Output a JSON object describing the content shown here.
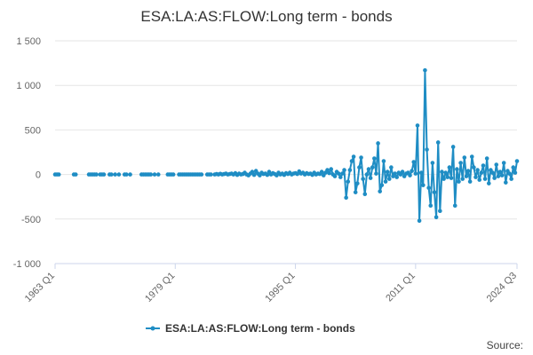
{
  "chart_data": {
    "type": "line",
    "title": "ESA:LA:AS:FLOW:Long term - bonds",
    "xlabel": "",
    "ylabel": "",
    "x_range": [
      "1963 Q1",
      "2024 Q3"
    ],
    "x_ticks": [
      "1963 Q1",
      "1979 Q1",
      "1995 Q1",
      "2011 Q1",
      "2024 Q3"
    ],
    "y_ticks": [
      "-1 000",
      "-500",
      "0",
      "500",
      "1 000",
      "1 500"
    ],
    "ylim": [
      -1000,
      1500
    ],
    "grid": true,
    "legend_position": "bottom",
    "series": [
      {
        "name": "ESA:LA:AS:FLOW:Long term - bonds",
        "color": "#1f8dc4",
        "points": [
          [
            "1963 Q1",
            0
          ],
          [
            "1963 Q2",
            0
          ],
          [
            "1963 Q3",
            0
          ],
          [
            "1965 Q3",
            0
          ],
          [
            "1965 Q4",
            0
          ],
          [
            "1967 Q3",
            0
          ],
          [
            "1967 Q4",
            0
          ],
          [
            "1968 Q1",
            0
          ],
          [
            "1968 Q2",
            0
          ],
          [
            "1968 Q3",
            0
          ],
          [
            "1969 Q1",
            0
          ],
          [
            "1969 Q2",
            0
          ],
          [
            "1969 Q3",
            0
          ],
          [
            "1970 Q2",
            0
          ],
          [
            "1970 Q3",
            0
          ],
          [
            "1971 Q1",
            0
          ],
          [
            "1971 Q3",
            0
          ],
          [
            "1972 Q2",
            0
          ],
          [
            "1972 Q3",
            0
          ],
          [
            "1973 Q1",
            0
          ],
          [
            "1974 Q3",
            0
          ],
          [
            "1974 Q4",
            0
          ],
          [
            "1975 Q1",
            0
          ],
          [
            "1975 Q2",
            0
          ],
          [
            "1975 Q3",
            0
          ],
          [
            "1975 Q4",
            0
          ],
          [
            "1976 Q2",
            0
          ],
          [
            "1976 Q4",
            0
          ],
          [
            "1978 Q1",
            0
          ],
          [
            "1978 Q2",
            0
          ],
          [
            "1978 Q3",
            0
          ],
          [
            "1978 Q4",
            0
          ],
          [
            "1979 Q3",
            0
          ],
          [
            "1979 Q4",
            0
          ],
          [
            "1980 Q1",
            0
          ],
          [
            "1980 Q2",
            0
          ],
          [
            "1980 Q3",
            0
          ],
          [
            "1980 Q4",
            0
          ],
          [
            "1981 Q1",
            0
          ],
          [
            "1981 Q2",
            0
          ],
          [
            "1981 Q3",
            0
          ],
          [
            "1981 Q4",
            0
          ],
          [
            "1982 Q1",
            0
          ],
          [
            "1982 Q2",
            0
          ],
          [
            "1982 Q3",
            0
          ],
          [
            "1983 Q2",
            0
          ],
          [
            "1983 Q3",
            0
          ],
          [
            "1983 Q4",
            0
          ],
          [
            "1984 Q2",
            0
          ],
          [
            "1984 Q3",
            5
          ],
          [
            "1984 Q4",
            0
          ],
          [
            "1985 Q1",
            8
          ],
          [
            "1985 Q2",
            0
          ],
          [
            "1985 Q3",
            5
          ],
          [
            "1985 Q4",
            10
          ],
          [
            "1986 Q1",
            0
          ],
          [
            "1986 Q2",
            5
          ],
          [
            "1986 Q3",
            10
          ],
          [
            "1986 Q4",
            0
          ],
          [
            "1987 Q1",
            15
          ],
          [
            "1987 Q2",
            -5
          ],
          [
            "1987 Q3",
            10
          ],
          [
            "1987 Q4",
            0
          ],
          [
            "1988 Q1",
            5
          ],
          [
            "1988 Q2",
            20
          ],
          [
            "1988 Q3",
            0
          ],
          [
            "1988 Q4",
            -10
          ],
          [
            "1989 Q1",
            10
          ],
          [
            "1989 Q2",
            30
          ],
          [
            "1989 Q3",
            -5
          ],
          [
            "1989 Q4",
            40
          ],
          [
            "1990 Q1",
            10
          ],
          [
            "1990 Q2",
            -10
          ],
          [
            "1990 Q3",
            20
          ],
          [
            "1990 Q4",
            5
          ],
          [
            "1991 Q1",
            10
          ],
          [
            "1991 Q2",
            -5
          ],
          [
            "1991 Q3",
            30
          ],
          [
            "1991 Q4",
            0
          ],
          [
            "1992 Q1",
            15
          ],
          [
            "1992 Q2",
            5
          ],
          [
            "1992 Q3",
            -10
          ],
          [
            "1992 Q4",
            20
          ],
          [
            "1993 Q1",
            0
          ],
          [
            "1993 Q2",
            10
          ],
          [
            "1993 Q3",
            -5
          ],
          [
            "1993 Q4",
            15
          ],
          [
            "1994 Q1",
            5
          ],
          [
            "1994 Q2",
            20
          ],
          [
            "1994 Q3",
            0
          ],
          [
            "1994 Q4",
            10
          ],
          [
            "1995 Q1",
            15
          ],
          [
            "1995 Q2",
            5
          ],
          [
            "1995 Q3",
            35
          ],
          [
            "1995 Q4",
            10
          ],
          [
            "1996 Q1",
            20
          ],
          [
            "1996 Q2",
            0
          ],
          [
            "1996 Q3",
            15
          ],
          [
            "1996 Q4",
            5
          ],
          [
            "1997 Q1",
            10
          ],
          [
            "1997 Q2",
            -5
          ],
          [
            "1997 Q3",
            20
          ],
          [
            "1997 Q4",
            0
          ],
          [
            "1998 Q1",
            10
          ],
          [
            "1998 Q2",
            5
          ],
          [
            "1998 Q3",
            30
          ],
          [
            "1998 Q4",
            -10
          ],
          [
            "1999 Q1",
            20
          ],
          [
            "1999 Q2",
            50
          ],
          [
            "1999 Q3",
            15
          ],
          [
            "1999 Q4",
            60
          ],
          [
            "2000 Q1",
            0
          ],
          [
            "2000 Q2",
            -20
          ],
          [
            "2000 Q3",
            30
          ],
          [
            "2000 Q4",
            10
          ],
          [
            "2001 Q1",
            -30
          ],
          [
            "2001 Q2",
            10
          ],
          [
            "2001 Q3",
            50
          ],
          [
            "2001 Q4",
            -260
          ],
          [
            "2002 Q1",
            -80
          ],
          [
            "2002 Q2",
            50
          ],
          [
            "2002 Q3",
            150
          ],
          [
            "2002 Q4",
            200
          ],
          [
            "2003 Q1",
            -200
          ],
          [
            "2003 Q2",
            -100
          ],
          [
            "2003 Q3",
            80
          ],
          [
            "2003 Q4",
            190
          ],
          [
            "2004 Q1",
            -50
          ],
          [
            "2004 Q2",
            -220
          ],
          [
            "2004 Q3",
            0
          ],
          [
            "2004 Q4",
            60
          ],
          [
            "2005 Q1",
            -40
          ],
          [
            "2005 Q2",
            80
          ],
          [
            "2005 Q3",
            180
          ],
          [
            "2005 Q4",
            10
          ],
          [
            "2006 Q1",
            350
          ],
          [
            "2006 Q2",
            -190
          ],
          [
            "2006 Q3",
            -120
          ],
          [
            "2006 Q4",
            150
          ],
          [
            "2007 Q1",
            -80
          ],
          [
            "2007 Q2",
            30
          ],
          [
            "2007 Q3",
            -50
          ],
          [
            "2007 Q4",
            80
          ],
          [
            "2008 Q1",
            -20
          ],
          [
            "2008 Q2",
            10
          ],
          [
            "2008 Q3",
            -30
          ],
          [
            "2008 Q4",
            20
          ],
          [
            "2009 Q1",
            0
          ],
          [
            "2009 Q2",
            30
          ],
          [
            "2009 Q3",
            -20
          ],
          [
            "2009 Q4",
            10
          ],
          [
            "2010 Q1",
            20
          ],
          [
            "2010 Q2",
            -10
          ],
          [
            "2010 Q3",
            40
          ],
          [
            "2010 Q4",
            140
          ],
          [
            "2011 Q1",
            10
          ],
          [
            "2011 Q2",
            550
          ],
          [
            "2011 Q3",
            -520
          ],
          [
            "2011 Q4",
            20
          ],
          [
            "2012 Q1",
            -120
          ],
          [
            "2012 Q2",
            1170
          ],
          [
            "2012 Q3",
            280
          ],
          [
            "2012 Q4",
            -150
          ],
          [
            "2013 Q1",
            -350
          ],
          [
            "2013 Q2",
            130
          ],
          [
            "2013 Q3",
            -200
          ],
          [
            "2013 Q4",
            -480
          ],
          [
            "2014 Q1",
            360
          ],
          [
            "2014 Q2",
            -410
          ],
          [
            "2014 Q3",
            30
          ],
          [
            "2014 Q4",
            -50
          ],
          [
            "2015 Q1",
            20
          ],
          [
            "2015 Q2",
            -30
          ],
          [
            "2015 Q3",
            80
          ],
          [
            "2015 Q4",
            -40
          ],
          [
            "2016 Q1",
            310
          ],
          [
            "2016 Q2",
            -350
          ],
          [
            "2016 Q3",
            60
          ],
          [
            "2016 Q4",
            -80
          ],
          [
            "2017 Q1",
            130
          ],
          [
            "2017 Q2",
            -50
          ],
          [
            "2017 Q3",
            190
          ],
          [
            "2017 Q4",
            -20
          ],
          [
            "2018 Q1",
            40
          ],
          [
            "2018 Q2",
            -80
          ],
          [
            "2018 Q3",
            200
          ],
          [
            "2018 Q4",
            80
          ],
          [
            "2019 Q1",
            -30
          ],
          [
            "2019 Q2",
            50
          ],
          [
            "2019 Q3",
            -60
          ],
          [
            "2019 Q4",
            20
          ],
          [
            "2020 Q1",
            100
          ],
          [
            "2020 Q2",
            -50
          ],
          [
            "2020 Q3",
            180
          ],
          [
            "2020 Q4",
            -100
          ],
          [
            "2021 Q1",
            50
          ],
          [
            "2021 Q2",
            20
          ],
          [
            "2021 Q3",
            -40
          ],
          [
            "2021 Q4",
            110
          ],
          [
            "2022 Q1",
            -20
          ],
          [
            "2022 Q2",
            30
          ],
          [
            "2022 Q3",
            -10
          ],
          [
            "2022 Q4",
            130
          ],
          [
            "2023 Q1",
            -90
          ],
          [
            "2023 Q2",
            40
          ],
          [
            "2023 Q3",
            10
          ],
          [
            "2023 Q4",
            -50
          ],
          [
            "2024 Q1",
            80
          ],
          [
            "2024 Q2",
            20
          ],
          [
            "2024 Q3",
            150
          ]
        ]
      }
    ]
  },
  "footer": {
    "source_label": "Source:"
  }
}
